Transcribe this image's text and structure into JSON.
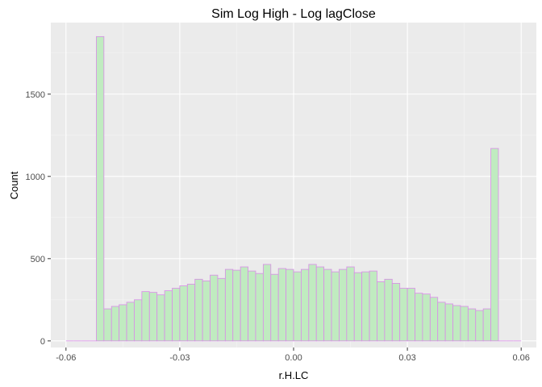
{
  "chart_data": {
    "type": "bar",
    "title": "Sim Log High - Log lagClose",
    "xlabel": "r.H.LC",
    "ylabel": "Count",
    "xlim": [
      -0.064,
      0.064
    ],
    "ylim": [
      -40,
      1935
    ],
    "x_ticks": [
      -0.06,
      -0.03,
      0.0,
      0.03,
      0.06
    ],
    "x_tick_labels": [
      "-0.06",
      "-0.03",
      "0.00",
      "0.03",
      "0.06"
    ],
    "y_ticks": [
      0,
      500,
      1000,
      1500
    ],
    "y_tick_labels": [
      "0",
      "500",
      "1000",
      "1500"
    ],
    "bin_width": 0.002,
    "bin_starts": [
      -0.06,
      -0.058,
      -0.056,
      -0.054,
      -0.052,
      -0.05,
      -0.048,
      -0.046,
      -0.044,
      -0.042,
      -0.04,
      -0.038,
      -0.036,
      -0.034,
      -0.032,
      -0.03,
      -0.028,
      -0.026,
      -0.024,
      -0.022,
      -0.02,
      -0.018,
      -0.016,
      -0.014,
      -0.012,
      -0.01,
      -0.008,
      -0.006,
      -0.004,
      -0.002,
      0.0,
      0.002,
      0.004,
      0.006,
      0.008,
      0.01,
      0.012,
      0.014,
      0.016,
      0.018,
      0.02,
      0.022,
      0.024,
      0.026,
      0.028,
      0.03,
      0.032,
      0.034,
      0.036,
      0.038,
      0.04,
      0.042,
      0.044,
      0.046,
      0.048,
      0.05,
      0.052,
      0.054,
      0.056,
      0.058
    ],
    "values": [
      0,
      0,
      0,
      0,
      1850,
      195,
      210,
      220,
      235,
      250,
      300,
      295,
      280,
      305,
      320,
      335,
      345,
      375,
      365,
      400,
      380,
      435,
      430,
      450,
      425,
      410,
      465,
      405,
      440,
      435,
      420,
      435,
      465,
      450,
      435,
      420,
      435,
      450,
      415,
      420,
      425,
      360,
      375,
      350,
      320,
      320,
      290,
      285,
      265,
      235,
      225,
      215,
      210,
      195,
      185,
      195,
      1170,
      0,
      0,
      0
    ],
    "grid": true,
    "legend": "none",
    "colors": {
      "panel_background": "#ebebeb",
      "grid_major": "#ffffff",
      "grid_minor": "#f5f5f5",
      "bar_fill": "#c0ebc0",
      "bar_outline": "#d98ce8",
      "tick": "#333333"
    }
  }
}
